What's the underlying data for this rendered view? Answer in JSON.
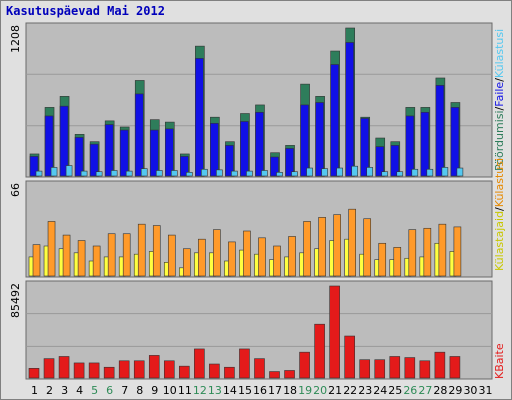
{
  "title": "Kasutuspäevad Mai 2012",
  "colors": {
    "pohordumisi": "#2e7d5b",
    "faile": "#1010e6",
    "kulastusi": "#55c8f0",
    "lehti": "#ffffff",
    "kulastajaid": "#ffff40",
    "baite": "#e41a1a",
    "plot_bg": "#bcbcbc",
    "weekend_label": "#2e8b57",
    "weekday_label": "#000000"
  },
  "chart_data": [
    {
      "type": "bar",
      "panel": "hits",
      "axis_max_label": "1208",
      "ylim": [
        0,
        1208
      ],
      "x": [
        1,
        2,
        3,
        4,
        5,
        6,
        7,
        8,
        9,
        10,
        11,
        12,
        13,
        14,
        15,
        16,
        17,
        18,
        19,
        20,
        21,
        22,
        23,
        24,
        25,
        26,
        27,
        28,
        29,
        30,
        31
      ],
      "series": [
        {
          "name": "Pöördumisi",
          "values": [
            180,
            560,
            650,
            340,
            280,
            450,
            400,
            780,
            460,
            440,
            180,
            1060,
            480,
            280,
            510,
            580,
            190,
            250,
            750,
            650,
            1020,
            1208,
            480,
            310,
            280,
            560,
            560,
            800,
            600,
            0,
            0
          ]
        },
        {
          "name": "Faile",
          "values": [
            160,
            490,
            570,
            315,
            260,
            420,
            375,
            670,
            375,
            385,
            160,
            960,
            430,
            250,
            445,
            520,
            155,
            225,
            580,
            600,
            910,
            1090,
            470,
            240,
            250,
            490,
            520,
            740,
            560,
            0,
            0
          ]
        },
        {
          "name": "Külastusi",
          "values": [
            40,
            70,
            85,
            40,
            35,
            45,
            40,
            60,
            45,
            45,
            30,
            55,
            50,
            40,
            40,
            45,
            30,
            35,
            65,
            60,
            65,
            80,
            70,
            35,
            35,
            55,
            55,
            70,
            65,
            0,
            0
          ]
        }
      ]
    },
    {
      "type": "bar",
      "panel": "visits",
      "axis_max_label": "66",
      "ylim": [
        0,
        66
      ],
      "x": [
        1,
        2,
        3,
        4,
        5,
        6,
        7,
        8,
        9,
        10,
        11,
        12,
        13,
        14,
        15,
        16,
        17,
        18,
        19,
        20,
        21,
        22,
        23,
        24,
        25,
        26,
        27,
        28,
        29,
        30,
        31
      ],
      "series": [
        {
          "name": "Lehti",
          "values": [
            0,
            0,
            0,
            0,
            0,
            0,
            0,
            0,
            0,
            0,
            0,
            0,
            0,
            0,
            0,
            0,
            0,
            0,
            0,
            0,
            0,
            0,
            0,
            0,
            0,
            0,
            0,
            0,
            0,
            0,
            0
          ]
        },
        {
          "name": "Külastajaid",
          "values": [
            14,
            22,
            20,
            17,
            11,
            14,
            14,
            16,
            18,
            10,
            6,
            17,
            17,
            11,
            19,
            16,
            12,
            14,
            17,
            20,
            26,
            27,
            16,
            12,
            12,
            13,
            14,
            24,
            18,
            0,
            0
          ]
        },
        {
          "name": "Külastusi",
          "values": [
            23,
            40,
            30,
            26,
            22,
            31,
            31,
            38,
            37,
            30,
            20,
            27,
            34,
            25,
            33,
            28,
            22,
            29,
            40,
            43,
            45,
            49,
            42,
            24,
            21,
            34,
            35,
            38,
            36,
            0,
            0
          ]
        }
      ]
    },
    {
      "type": "bar",
      "panel": "bytes",
      "axis_max_label": "85492",
      "ylim": [
        0,
        85492
      ],
      "x": [
        1,
        2,
        3,
        4,
        5,
        6,
        7,
        8,
        9,
        10,
        11,
        12,
        13,
        14,
        15,
        16,
        17,
        18,
        19,
        20,
        21,
        22,
        23,
        24,
        25,
        26,
        27,
        28,
        29,
        30,
        31
      ],
      "series": [
        {
          "name": "KBaite",
          "values": [
            9000,
            18000,
            20000,
            14000,
            14000,
            10000,
            16000,
            16000,
            21000,
            16000,
            11000,
            27000,
            13000,
            10000,
            27000,
            18000,
            6000,
            7000,
            24000,
            50000,
            85492,
            39000,
            17000,
            17000,
            20000,
            19000,
            16000,
            24000,
            20000,
            0,
            0
          ]
        }
      ]
    }
  ],
  "day_labels": [
    {
      "label": "1",
      "weekend": false
    },
    {
      "label": "2",
      "weekend": false
    },
    {
      "label": "3",
      "weekend": false
    },
    {
      "label": "4",
      "weekend": false
    },
    {
      "label": "5",
      "weekend": true
    },
    {
      "label": "6",
      "weekend": true
    },
    {
      "label": "7",
      "weekend": false
    },
    {
      "label": "8",
      "weekend": false
    },
    {
      "label": "9",
      "weekend": false
    },
    {
      "label": "10",
      "weekend": false
    },
    {
      "label": "11",
      "weekend": false
    },
    {
      "label": "12",
      "weekend": true
    },
    {
      "label": "13",
      "weekend": true
    },
    {
      "label": "14",
      "weekend": false
    },
    {
      "label": "15",
      "weekend": false
    },
    {
      "label": "16",
      "weekend": false
    },
    {
      "label": "17",
      "weekend": false
    },
    {
      "label": "18",
      "weekend": false
    },
    {
      "label": "19",
      "weekend": true
    },
    {
      "label": "20",
      "weekend": true
    },
    {
      "label": "21",
      "weekend": false
    },
    {
      "label": "22",
      "weekend": false
    },
    {
      "label": "23",
      "weekend": false
    },
    {
      "label": "24",
      "weekend": false
    },
    {
      "label": "25",
      "weekend": false
    },
    {
      "label": "26",
      "weekend": true
    },
    {
      "label": "27",
      "weekend": true
    },
    {
      "label": "28",
      "weekend": false
    },
    {
      "label": "29",
      "weekend": false
    },
    {
      "label": "30",
      "weekend": false
    },
    {
      "label": "31",
      "weekend": false
    }
  ],
  "legend": {
    "hits": [
      {
        "text": "Pöördumisi",
        "color": "#2e7d5b"
      },
      {
        "text": "/",
        "color": "#000000"
      },
      {
        "text": "Faile",
        "color": "#1010e6"
      },
      {
        "text": "/",
        "color": "#000000"
      },
      {
        "text": "Külastusi",
        "color": "#55c8f0"
      }
    ],
    "visits": [
      {
        "text": "Külastajaid",
        "color": "#c8c800"
      },
      {
        "text": "/",
        "color": "#000000"
      },
      {
        "text": "Külastusi",
        "color": "#e68a00"
      }
    ],
    "bytes": [
      {
        "text": "KBaite",
        "color": "#e41a1a"
      }
    ]
  }
}
